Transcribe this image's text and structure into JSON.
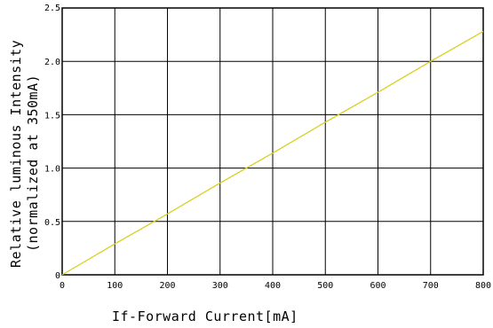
{
  "chart_data": {
    "type": "line",
    "title": "",
    "xlabel": "If-Forward Current[mA]",
    "ylabel_line1": "Relative luminous Intensity",
    "ylabel_line2": "(normalized at 350mA)",
    "xlim": [
      0,
      800
    ],
    "ylim": [
      0,
      2.5
    ],
    "xticks": [
      0,
      100,
      200,
      300,
      400,
      500,
      600,
      700,
      800
    ],
    "xtick_labels": [
      "0",
      "100",
      "200",
      "300",
      "400",
      "500",
      "600",
      "700",
      "800"
    ],
    "yticks": [
      0,
      0.5,
      1.0,
      1.5,
      2.0,
      2.5
    ],
    "ytick_labels": [
      "0",
      "0.5",
      "1.0",
      "1.5",
      "2.0",
      "2.5"
    ],
    "grid": true,
    "series": [
      {
        "color": "#d8d020",
        "x": [
          0,
          100,
          200,
          300,
          350,
          400,
          500,
          600,
          700,
          800
        ],
        "y": [
          0,
          0.29,
          0.57,
          0.86,
          1.0,
          1.14,
          1.43,
          1.71,
          2.0,
          2.28
        ]
      }
    ]
  }
}
